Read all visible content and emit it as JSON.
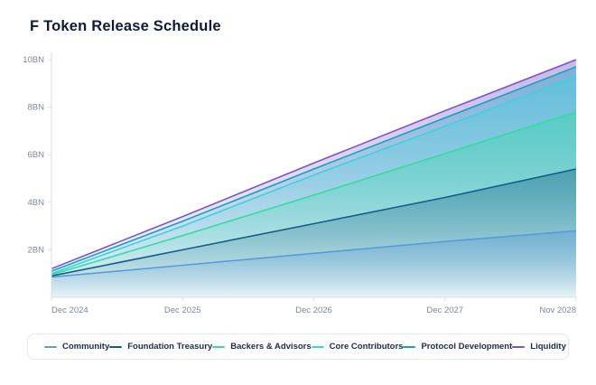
{
  "chart_data": {
    "type": "area",
    "title": "F Token Release Schedule",
    "stacked_cumulative": true,
    "x": [
      "Dec 2024",
      "Dec 2025",
      "Dec 2026",
      "Dec 2027",
      "Nov 2028"
    ],
    "y_ticks": [
      {
        "label": "2BN",
        "value": 2
      },
      {
        "label": "4BN",
        "value": 4
      },
      {
        "label": "6BN",
        "value": 6
      },
      {
        "label": "8BN",
        "value": 8
      },
      {
        "label": "10BN",
        "value": 10
      }
    ],
    "ylim": [
      0,
      10
    ],
    "ylabel": "",
    "xlabel": "",
    "grid": false,
    "legend_position": "bottom",
    "series": [
      {
        "name": "Community",
        "color": "#5a9bd8",
        "values": [
          0.85,
          1.35,
          1.85,
          2.35,
          2.8
        ]
      },
      {
        "name": "Foundation Treasury",
        "color": "#155e86",
        "values": [
          0.9,
          2.0,
          3.1,
          4.2,
          5.4
        ]
      },
      {
        "name": "Backers & Advisors",
        "color": "#35dba2",
        "values": [
          0.95,
          2.6,
          4.3,
          6.05,
          7.8
        ]
      },
      {
        "name": "Core Contributors",
        "color": "#3ad3de",
        "values": [
          1.0,
          3.0,
          5.15,
          7.2,
          9.3
        ]
      },
      {
        "name": "Protocol Development",
        "color": "#169fc0",
        "values": [
          1.1,
          3.2,
          5.4,
          7.55,
          9.7
        ]
      },
      {
        "name": "Liquidity",
        "color": "#7c56c7",
        "values": [
          1.2,
          3.4,
          5.65,
          7.85,
          10.0
        ]
      }
    ]
  }
}
